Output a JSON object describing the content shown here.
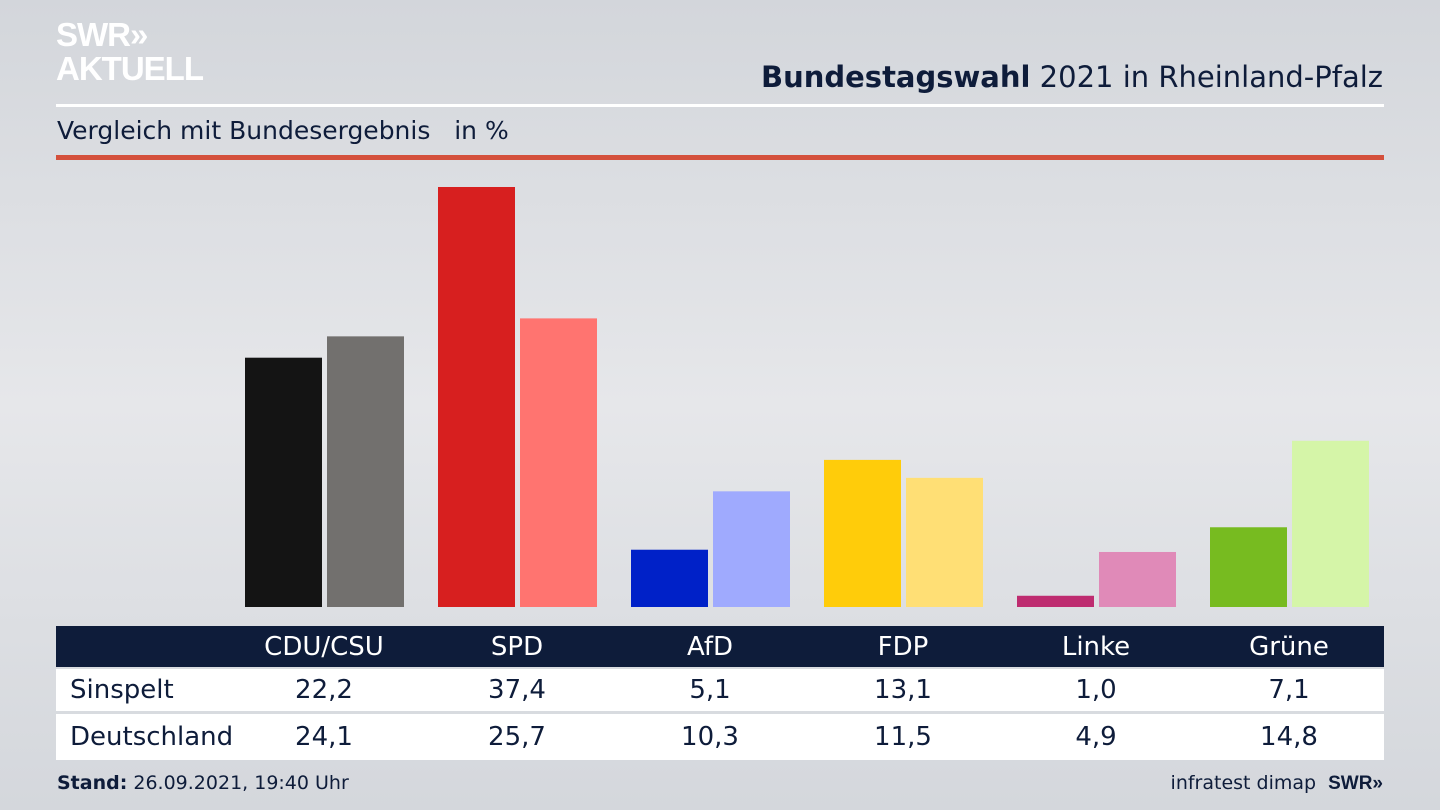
{
  "logo": {
    "line1": "SWR»",
    "line2": "AKTUELL"
  },
  "title_bold": "Bundestagswahl",
  "title_rest": " 2021 in Rheinland-Pfalz",
  "subtitle": "Vergleich mit Bundesergebnis   in %",
  "chart_data": {
    "type": "bar",
    "categories": [
      "CDU/CSU",
      "SPD",
      "AfD",
      "FDP",
      "Linke",
      "Grüne"
    ],
    "series": [
      {
        "name": "Sinspelt",
        "values": [
          22.2,
          37.4,
          5.1,
          13.1,
          1.0,
          7.1
        ],
        "labels": [
          "22,2",
          "37,4",
          "5,1",
          "13,1",
          "1,0",
          "7,1"
        ],
        "colors": [
          "#141414",
          "#d71f1f",
          "#0021c8",
          "#ffcc0a",
          "#be2c70",
          "#77bb20"
        ]
      },
      {
        "name": "Deutschland",
        "values": [
          24.1,
          25.7,
          10.3,
          11.5,
          4.9,
          14.8
        ],
        "labels": [
          "24,1",
          "25,7",
          "10,3",
          "11,5",
          "4,9",
          "14,8"
        ],
        "colors": [
          "#72706e",
          "#ff7470",
          "#9faafe",
          "#ffdf75",
          "#e08ab8",
          "#d5f5a8"
        ]
      }
    ],
    "unit": "%",
    "grid": false
  },
  "footer": {
    "stand_label": "Stand:",
    "stand_value": " 26.09.2021, 19:40 Uhr",
    "source": "infratest dimap",
    "brand": "SWR»"
  }
}
